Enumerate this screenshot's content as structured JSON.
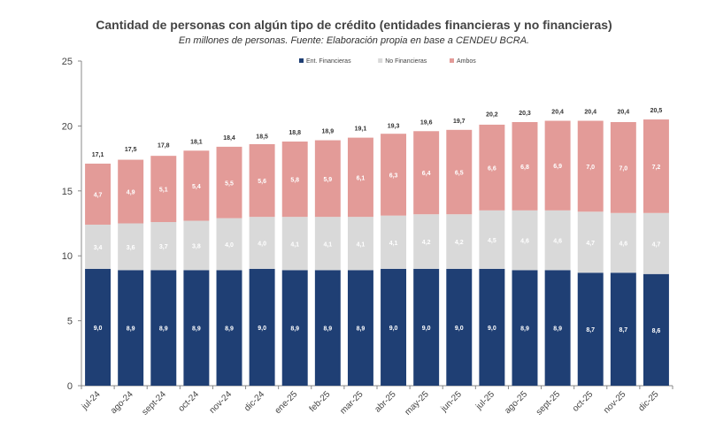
{
  "chart_data": {
    "type": "bar",
    "stacked": true,
    "title": "Cantidad  de personas  con algún tipo de crédito (entidades financieras  y no financieras)",
    "subtitle": "En millones de personas. Fuente: Elaboración propia en base a CENDEU BCRA.",
    "categories": [
      "jul-24",
      "ago-24",
      "sept-24",
      "oct-24",
      "nov-24",
      "dic-24",
      "ene-25",
      "feb-25",
      "mar-25",
      "abr-25",
      "may-25",
      "jun-25",
      "jul-25",
      "ago-25",
      "sept-25",
      "oct-25",
      "nov-25",
      "dic-25"
    ],
    "series": [
      {
        "name": "Ent. Financieras",
        "color": "#1f3f74",
        "values": [
          9.0,
          8.9,
          8.9,
          8.9,
          8.9,
          9.0,
          8.9,
          8.9,
          8.9,
          9.0,
          9.0,
          9.0,
          9.0,
          8.9,
          8.9,
          8.7,
          8.7,
          8.6
        ]
      },
      {
        "name": "No Financieras",
        "color": "#d9d9d9",
        "values": [
          3.4,
          3.6,
          3.7,
          3.8,
          4.0,
          4.0,
          4.1,
          4.1,
          4.1,
          4.1,
          4.2,
          4.2,
          4.5,
          4.6,
          4.6,
          4.7,
          4.6,
          4.7
        ]
      },
      {
        "name": "Ambos",
        "color": "#e39b98",
        "values": [
          4.7,
          4.9,
          5.1,
          5.4,
          5.5,
          5.6,
          5.8,
          5.9,
          6.1,
          6.3,
          6.4,
          6.5,
          6.6,
          6.8,
          6.9,
          7.0,
          7.0,
          7.2
        ]
      }
    ],
    "value_labels": {
      "Ent. Financieras": [
        "9,0",
        "8,9",
        "8,9",
        "8,9",
        "8,9",
        "9,0",
        "8,9",
        "8,9",
        "8,9",
        "9,0",
        "9,0",
        "9,0",
        "9,0",
        "8,9",
        "8,9",
        "8,7",
        "8,7",
        "8,6"
      ],
      "No Financieras": [
        "3,4",
        "3,6",
        "3,7",
        "3,8",
        "4,0",
        "4,0",
        "4,1",
        "4,1",
        "4,1",
        "4,1",
        "4,2",
        "4,2",
        "4,5",
        "4,6",
        "4,6",
        "4,7",
        "4,6",
        "4,7"
      ],
      "Ambos": [
        "4,7",
        "4,9",
        "5,1",
        "5,4",
        "5,5",
        "5,6",
        "5,8",
        "5,9",
        "6,1",
        "6,3",
        "6,4",
        "6,5",
        "6,6",
        "6,8",
        "6,9",
        "7,0",
        "7,0",
        "7,2"
      ]
    },
    "totals": [
      17.1,
      17.5,
      17.8,
      18.1,
      18.4,
      18.5,
      18.8,
      18.9,
      19.1,
      19.3,
      19.6,
      19.7,
      20.2,
      20.3,
      20.4,
      20.4,
      20.4,
      20.5
    ],
    "total_labels": [
      "17,1",
      "17,5",
      "17,8",
      "18,1",
      "18,4",
      "18,5",
      "18,8",
      "18,9",
      "19,1",
      "19,3",
      "19,6",
      "19,7",
      "20,2",
      "20,3",
      "20,4",
      "20,4",
      "20,4",
      "20,5"
    ],
    "xlabel": "",
    "ylabel": "",
    "ylim": [
      0,
      25
    ],
    "yticks": [
      0,
      5,
      10,
      15,
      20,
      25
    ],
    "grid": false,
    "legend_position": "top"
  }
}
